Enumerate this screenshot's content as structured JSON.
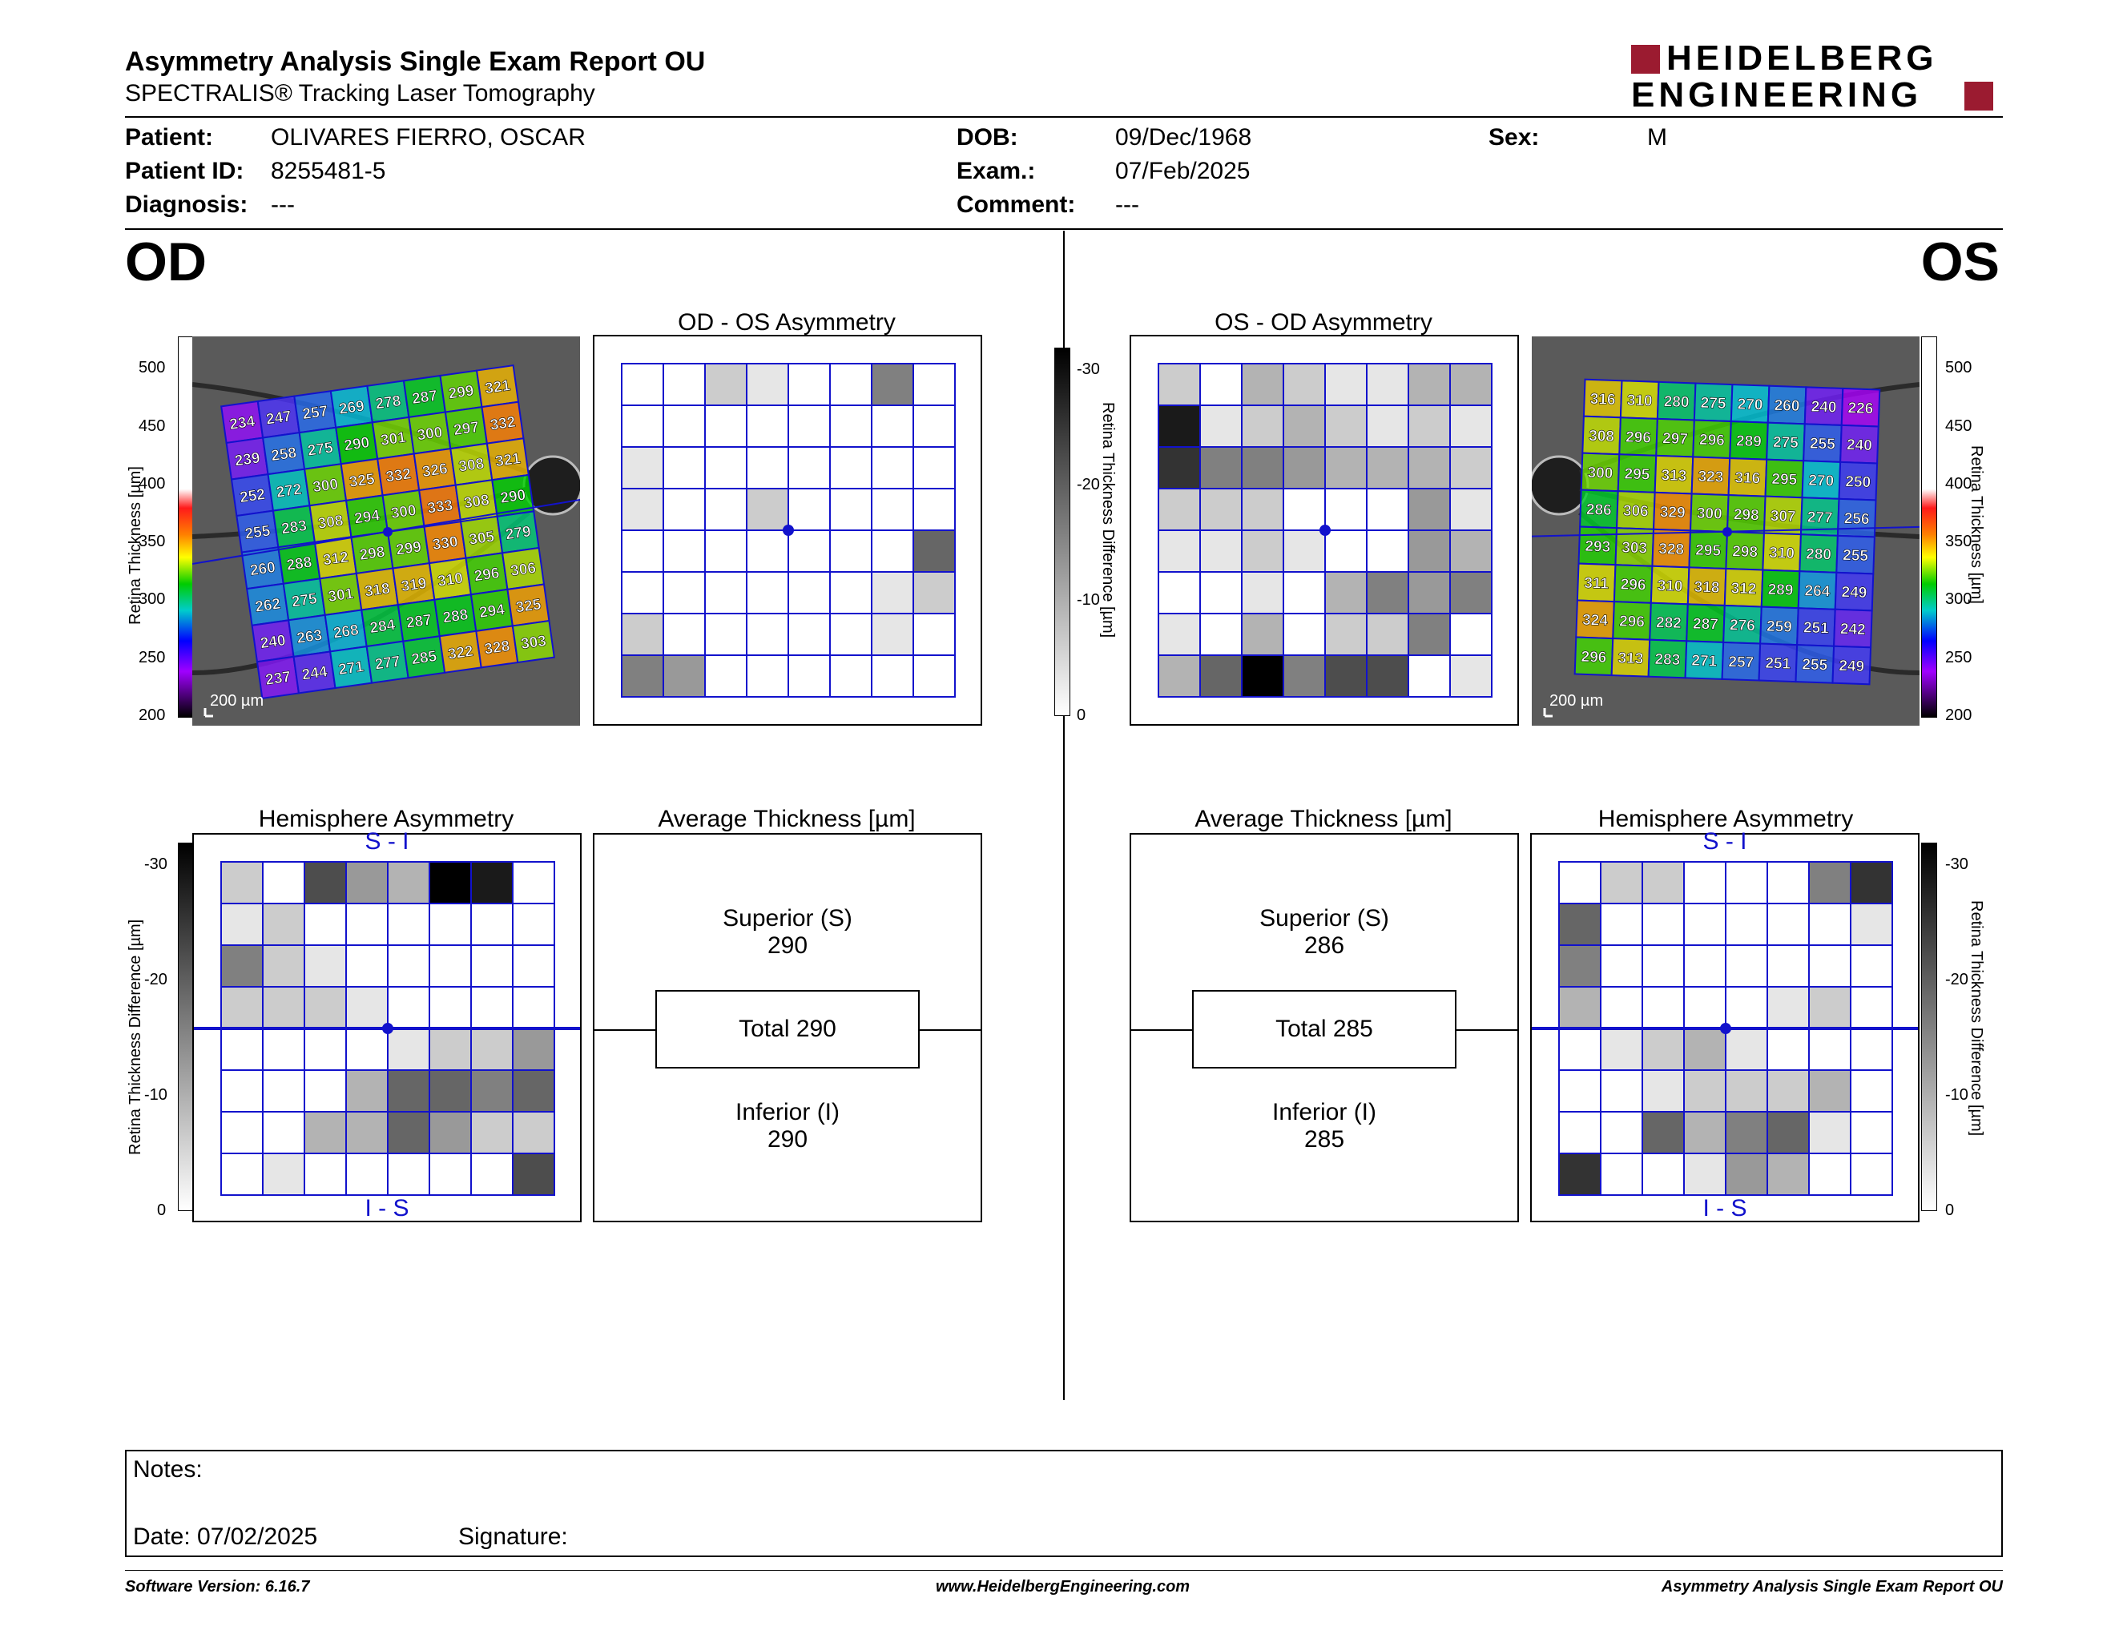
{
  "header": {
    "title": "Asymmetry Analysis Single Exam Report OU",
    "subtitle": "SPECTRALIS® Tracking Laser Tomography",
    "logo_line1": "HEIDELBERG",
    "logo_line2": "ENGINEERING"
  },
  "patient": {
    "patient_label": "Patient:",
    "patient_value": "OLIVARES FIERRO, OSCAR",
    "id_label": "Patient ID:",
    "id_value": "8255481-5",
    "diagnosis_label": "Diagnosis:",
    "diagnosis_value": "---",
    "dob_label": "DOB:",
    "dob_value": "09/Dec/1968",
    "exam_label": "Exam.:",
    "exam_value": "07/Feb/2025",
    "comment_label": "Comment:",
    "comment_value": "---",
    "sex_label": "Sex:",
    "sex_value": "M"
  },
  "od": {
    "eye_label": "OD",
    "scale_label": "200 µm",
    "thickness_axis_label": "Retina Thickness [µm]",
    "thickness_ticks": [
      "500",
      "450",
      "400",
      "350",
      "300",
      "250",
      "200"
    ],
    "grid_values": [
      [
        234,
        247,
        257,
        269,
        278,
        287,
        299,
        321
      ],
      [
        239,
        258,
        275,
        290,
        301,
        300,
        297,
        332
      ],
      [
        252,
        272,
        300,
        325,
        332,
        326,
        308,
        321
      ],
      [
        255,
        283,
        308,
        294,
        300,
        333,
        308,
        290
      ],
      [
        260,
        288,
        312,
        298,
        299,
        330,
        305,
        279
      ],
      [
        262,
        275,
        301,
        318,
        319,
        310,
        296,
        306
      ],
      [
        240,
        263,
        268,
        284,
        287,
        288,
        294,
        325
      ],
      [
        237,
        244,
        271,
        277,
        285,
        322,
        328,
        303
      ]
    ],
    "asym_title": "OD - OS Asymmetry",
    "asym_shades": [
      [
        0,
        0,
        2,
        1,
        0,
        0,
        5,
        0
      ],
      [
        0,
        0,
        0,
        0,
        0,
        0,
        0,
        0
      ],
      [
        1,
        0,
        0,
        0,
        0,
        0,
        0,
        0
      ],
      [
        1,
        0,
        0,
        2,
        0,
        0,
        0,
        0
      ],
      [
        0,
        0,
        0,
        0,
        0,
        0,
        0,
        6
      ],
      [
        0,
        0,
        0,
        0,
        0,
        0,
        1,
        2
      ],
      [
        2,
        0,
        0,
        0,
        0,
        0,
        1,
        0
      ],
      [
        5,
        4,
        0,
        0,
        0,
        0,
        0,
        0
      ]
    ],
    "hemi_title": "Hemisphere Asymmetry",
    "hemi_top": "S - I",
    "hemi_bottom": "I - S",
    "hemi_axis_label": "Retina Thickness Difference [µm]",
    "hemi_ticks": [
      "-30",
      "-20",
      "-10",
      "0"
    ],
    "hemi_shades": [
      [
        2,
        0,
        7,
        4,
        3,
        10,
        9,
        0
      ],
      [
        1,
        2,
        0,
        0,
        0,
        0,
        0,
        0
      ],
      [
        5,
        2,
        1,
        0,
        0,
        0,
        0,
        0
      ],
      [
        2,
        2,
        2,
        1,
        0,
        0,
        0,
        0
      ],
      [
        0,
        0,
        0,
        0,
        1,
        2,
        2,
        4
      ],
      [
        0,
        0,
        0,
        3,
        6,
        6,
        5,
        6
      ],
      [
        0,
        0,
        3,
        3,
        6,
        4,
        2,
        2
      ],
      [
        0,
        1,
        0,
        0,
        0,
        0,
        0,
        7
      ]
    ],
    "avg_title": "Average Thickness [µm]",
    "superior_label": "Superior (S)",
    "superior_value": "290",
    "total_label": "Total 290",
    "inferior_label": "Inferior (I)",
    "inferior_value": "290"
  },
  "os": {
    "eye_label": "OS",
    "scale_label": "200 µm",
    "thickness_axis_label": "Retina Thickness [µm]",
    "thickness_ticks": [
      "500",
      "450",
      "400",
      "350",
      "300",
      "250",
      "200"
    ],
    "grid_values": [
      [
        316,
        310,
        280,
        275,
        270,
        260,
        240,
        226
      ],
      [
        308,
        296,
        297,
        296,
        289,
        275,
        255,
        240
      ],
      [
        300,
        295,
        313,
        323,
        316,
        295,
        270,
        250
      ],
      [
        286,
        306,
        329,
        300,
        298,
        307,
        277,
        256
      ],
      [
        293,
        303,
        328,
        295,
        298,
        310,
        280,
        255
      ],
      [
        311,
        296,
        310,
        318,
        312,
        289,
        264,
        249
      ],
      [
        324,
        296,
        282,
        287,
        276,
        259,
        251,
        242
      ],
      [
        296,
        313,
        283,
        271,
        257,
        251,
        255,
        249
      ]
    ],
    "asym_title": "OS - OD Asymmetry",
    "asym_shades": [
      [
        2,
        0,
        3,
        2,
        1,
        1,
        3,
        3
      ],
      [
        9,
        1,
        2,
        3,
        2,
        1,
        2,
        1
      ],
      [
        8,
        5,
        5,
        4,
        3,
        3,
        3,
        2
      ],
      [
        2,
        2,
        2,
        0,
        0,
        0,
        4,
        1
      ],
      [
        1,
        1,
        2,
        1,
        0,
        0,
        4,
        3
      ],
      [
        0,
        0,
        1,
        0,
        3,
        5,
        4,
        5
      ],
      [
        1,
        0,
        3,
        0,
        2,
        2,
        5,
        0
      ],
      [
        3,
        6,
        10,
        5,
        7,
        7,
        0,
        1
      ]
    ],
    "diff_axis_label": "Retina Thickness Difference [µm]",
    "diff_ticks": [
      "-30",
      "-20",
      "-10",
      "0"
    ],
    "hemi_title": "Hemisphere Asymmetry",
    "hemi_top": "S - I",
    "hemi_bottom": "I - S",
    "hemi_axis_label": "Retina Thickness Difference [µm]",
    "hemi_ticks": [
      "-30",
      "-20",
      "-10",
      "0"
    ],
    "hemi_shades": [
      [
        0,
        2,
        2,
        0,
        0,
        0,
        5,
        8
      ],
      [
        6,
        0,
        0,
        0,
        0,
        0,
        0,
        1
      ],
      [
        5,
        0,
        0,
        0,
        0,
        0,
        0,
        0
      ],
      [
        3,
        0,
        0,
        0,
        0,
        1,
        2,
        0
      ],
      [
        0,
        1,
        2,
        3,
        1,
        0,
        0,
        0
      ],
      [
        0,
        0,
        1,
        2,
        2,
        2,
        3,
        0
      ],
      [
        0,
        0,
        6,
        3,
        5,
        6,
        1,
        0
      ],
      [
        8,
        0,
        0,
        1,
        4,
        3,
        0,
        0
      ]
    ],
    "avg_title": "Average Thickness [µm]",
    "superior_label": "Superior (S)",
    "superior_value": "286",
    "total_label": "Total 285",
    "inferior_label": "Inferior (I)",
    "inferior_value": "285"
  },
  "notes": {
    "notes_label": "Notes:",
    "date_label": "Date: 07/02/2025",
    "signature_label": "Signature:"
  },
  "footer": {
    "software": "Software Version: 6.16.7",
    "website": "www.HeidelbergEngineering.com",
    "report_name": "Asymmetry Analysis Single Exam Report OU"
  },
  "colors": {
    "grid_blue": "#1212cc",
    "brand_red": "#9b1b30"
  }
}
